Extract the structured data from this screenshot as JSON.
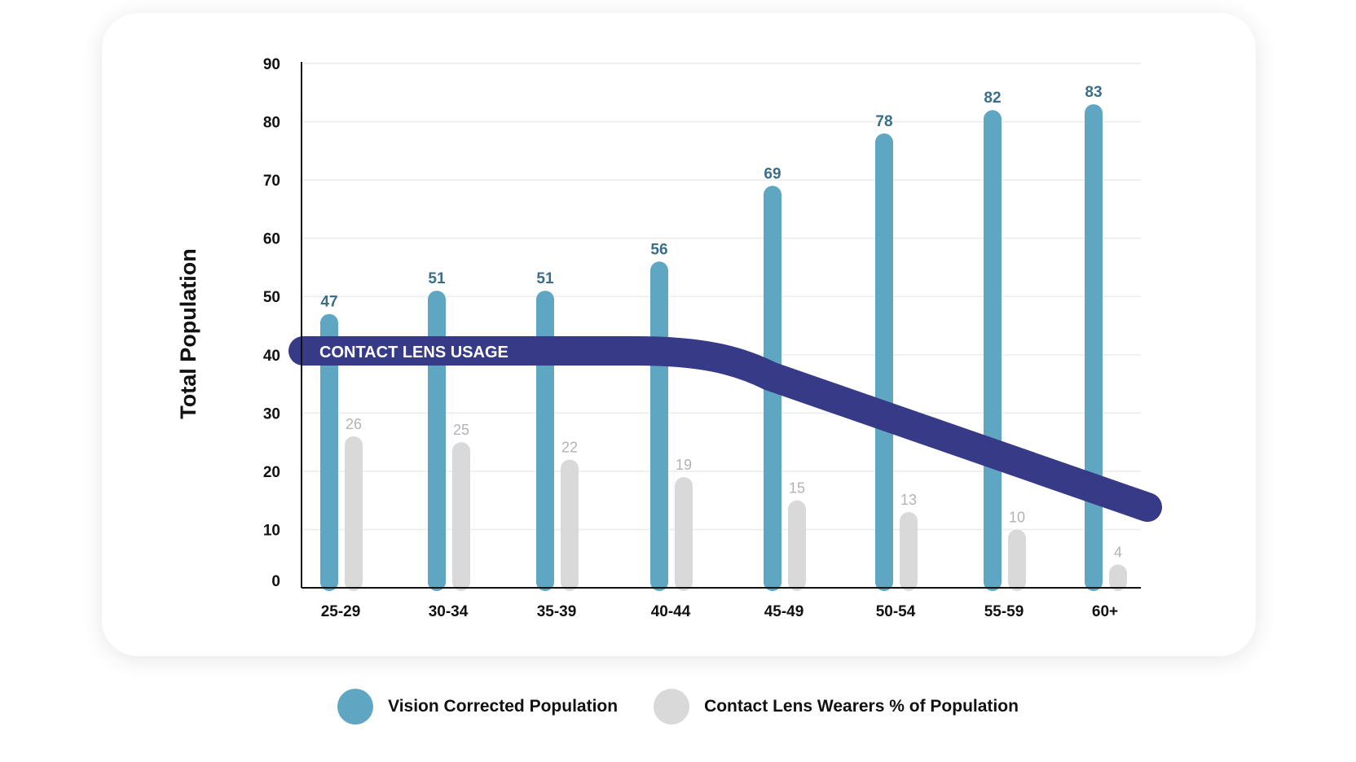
{
  "chart_data": {
    "type": "bar",
    "categories": [
      "25-29",
      "30-34",
      "35-39",
      "40-44",
      "45-49",
      "50-54",
      "55-59",
      "60+"
    ],
    "series": [
      {
        "name": "Vision Corrected Population",
        "values": [
          47,
          51,
          51,
          56,
          69,
          78,
          82,
          83
        ],
        "color": "#5fa6c3",
        "label_color": "#3b6e88"
      },
      {
        "name": "Contact Lens Wearers % of Population",
        "values": [
          26,
          25,
          22,
          19,
          15,
          13,
          10,
          4
        ],
        "color": "#d9d9d9",
        "label_color": "#b3b3b3"
      }
    ],
    "trend": {
      "label": "CONTACT LENS USAGE",
      "color": "#373a86"
    },
    "ylabel": "Total Population",
    "xlabel": "",
    "ylim": [
      0,
      90
    ],
    "yticks": [
      "0",
      "10",
      "20",
      "30",
      "40",
      "50",
      "60",
      "70",
      "80",
      "90"
    ],
    "grid": true,
    "legend_position": "bottom-center"
  },
  "legend": {
    "items": [
      {
        "label": "Vision Corrected Population",
        "color": "#5fa6c3"
      },
      {
        "label": "Contact Lens Wearers % of Population",
        "color": "#d9d9d9"
      }
    ]
  }
}
